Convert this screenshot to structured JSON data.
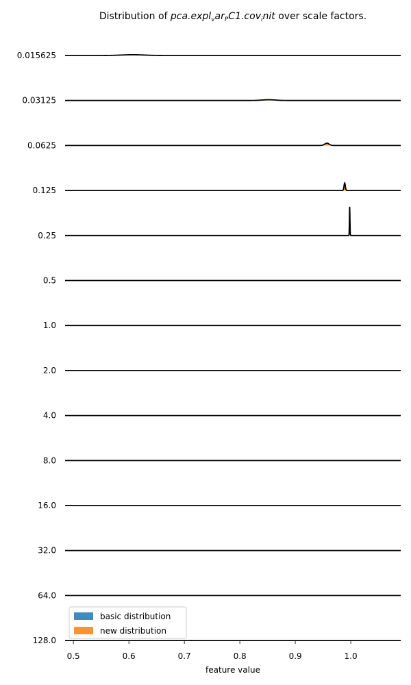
{
  "chart_data": {
    "type": "area",
    "title": {
      "prefix": "Distribution of ",
      "math": "pca.expl",
      "sub": "v",
      "math2": "ar",
      "sub2": "P",
      "math3": "C1.cov",
      "sub3": "i",
      "math4": "nit",
      "suffix": " over scale factors."
    },
    "xlabel": "feature value",
    "xlim": [
      0.485,
      1.09
    ],
    "x_ticks": [
      {
        "value": 0.5,
        "label": "0.5"
      },
      {
        "value": 0.6,
        "label": "0.6"
      },
      {
        "value": 0.7,
        "label": "0.7"
      },
      {
        "value": 0.8,
        "label": "0.8"
      },
      {
        "value": 0.9,
        "label": "0.9"
      },
      {
        "value": 1.0,
        "label": "1.0"
      }
    ],
    "rows": [
      {
        "label": "0.015625",
        "peaks": [
          {
            "x": 0.607,
            "h": 0.04,
            "w": 0.02
          }
        ]
      },
      {
        "label": "0.03125",
        "peaks": [
          {
            "x": 0.852,
            "h": 0.04,
            "w": 0.012
          }
        ]
      },
      {
        "label": "0.0625",
        "peaks": [
          {
            "x": 0.957,
            "h": 0.12,
            "w": 0.004
          }
        ]
      },
      {
        "label": "0.125",
        "peaks": [
          {
            "x": 0.989,
            "h": 0.4,
            "w": 0.0012
          }
        ]
      },
      {
        "label": "0.25",
        "peaks": [
          {
            "x": 0.998,
            "h": 1.5,
            "w": 0.0005
          }
        ]
      },
      {
        "label": "0.5",
        "peaks": []
      },
      {
        "label": "1.0",
        "peaks": []
      },
      {
        "label": "2.0",
        "peaks": []
      },
      {
        "label": "4.0",
        "peaks": []
      },
      {
        "label": "8.0",
        "peaks": []
      },
      {
        "label": "16.0",
        "peaks": []
      },
      {
        "label": "32.0",
        "peaks": []
      },
      {
        "label": "64.0",
        "peaks": []
      },
      {
        "label": "128.0",
        "peaks": []
      }
    ],
    "series": [
      {
        "name": "basic distribution",
        "color": "#1f77b4"
      },
      {
        "name": "new distribution",
        "color": "#ff7f0e"
      }
    ],
    "legend_position": "lower-left",
    "grid": false
  }
}
